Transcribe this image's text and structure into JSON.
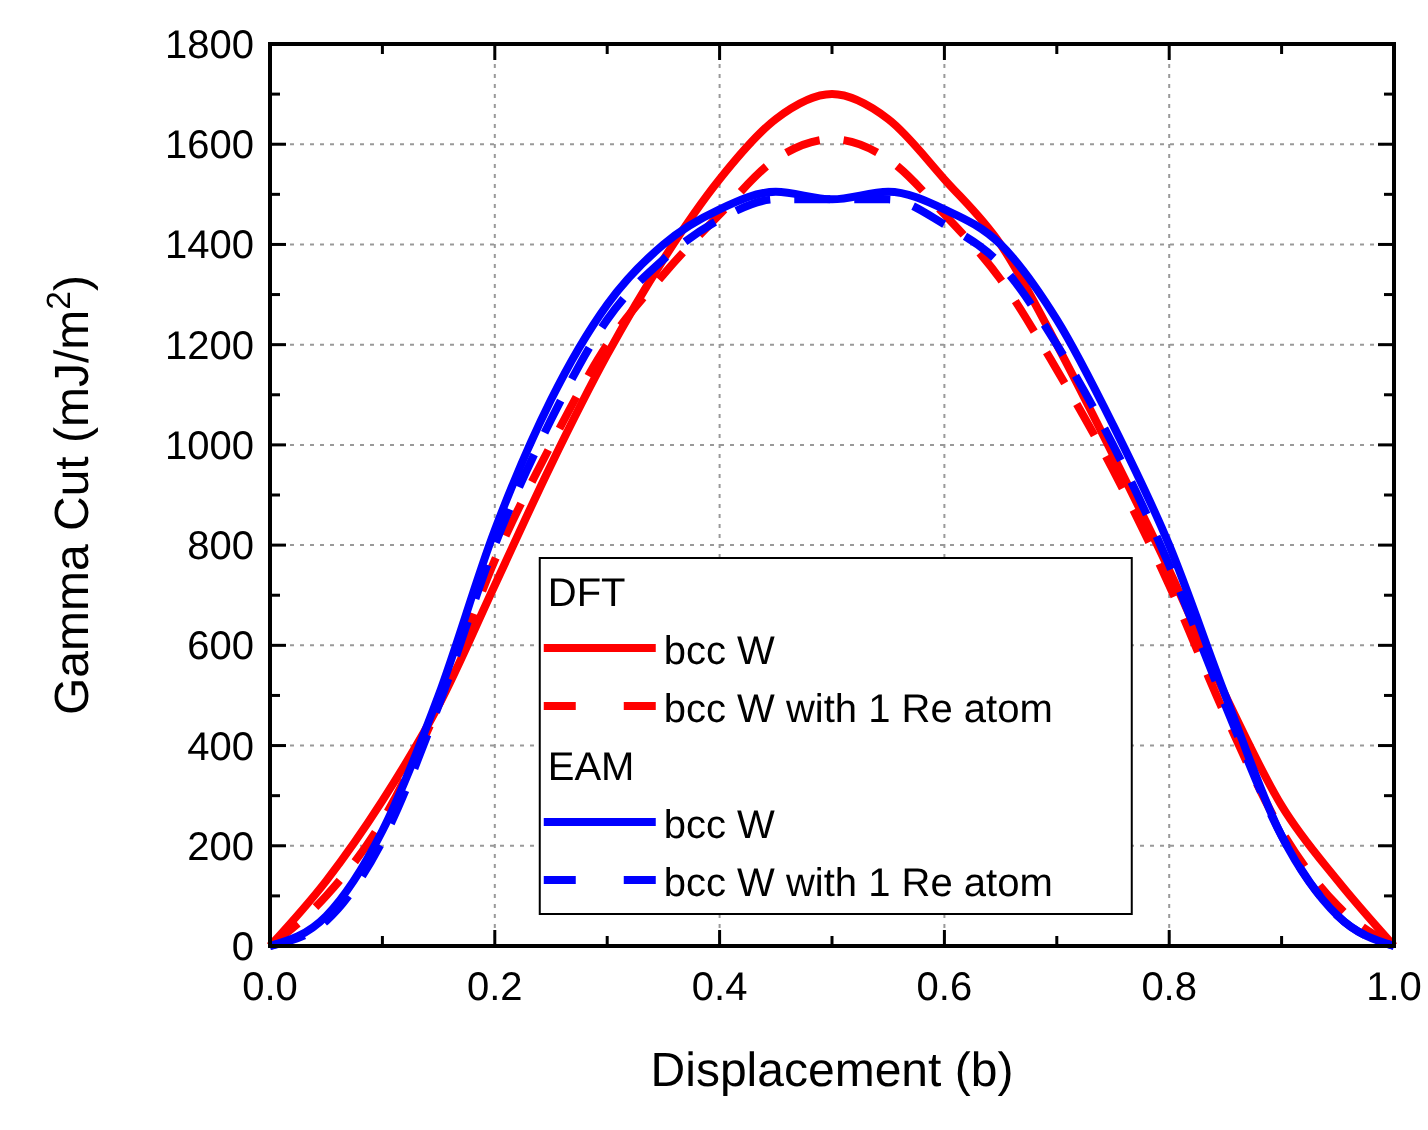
{
  "chart_data": {
    "type": "line",
    "xlabel": "Displacement (b)",
    "ylabel": "Gamma Cut (mJ/m$^{2}$)",
    "xlim": [
      0,
      1
    ],
    "ylim": [
      0,
      1800
    ],
    "xticks": [
      {
        "value": 0,
        "label": "0.0"
      },
      {
        "value": 0.1,
        "label": null
      },
      {
        "value": 0.2,
        "label": "0.2"
      },
      {
        "value": 0.3,
        "label": null
      },
      {
        "value": 0.4,
        "label": "0.4"
      },
      {
        "value": 0.5,
        "label": null
      },
      {
        "value": 0.6,
        "label": "0.6"
      },
      {
        "value": 0.7,
        "label": null
      },
      {
        "value": 0.8,
        "label": "0.8"
      },
      {
        "value": 0.9,
        "label": null
      },
      {
        "value": 1,
        "label": "1.0"
      }
    ],
    "yticks": [
      0,
      {
        "value": 100,
        "label": null
      },
      200,
      {
        "value": 300,
        "label": null
      },
      400,
      {
        "value": 500,
        "label": null
      },
      600,
      {
        "value": 700,
        "label": null
      },
      800,
      {
        "value": 900,
        "label": null
      },
      1000,
      {
        "value": 1100,
        "label": null
      },
      1200,
      {
        "value": 1300,
        "label": null
      },
      1400,
      {
        "value": 1500,
        "label": null
      },
      1600,
      {
        "value": 1700,
        "label": null
      },
      1800
    ],
    "grid": true,
    "legend": "bottom",
    "annotations": [
      "DFT",
      "EAM"
    ],
    "x": [
      0,
      0.05,
      0.1,
      0.15,
      0.2,
      0.25,
      0.3,
      0.35,
      0.4,
      0.45,
      0.5,
      0.55,
      0.6,
      0.65,
      0.7,
      0.75,
      0.8,
      0.85,
      0.9,
      0.95,
      1
    ],
    "series": [
      {
        "name": "bcc W",
        "color": "#ff0000",
        "line_style": "solid",
        "values": [
          0,
          130,
          290,
          480,
          720,
          960,
          1180,
          1370,
          1530,
          1650,
          1700,
          1650,
          1530,
          1400,
          1200,
          980,
          750,
          500,
          280,
          130,
          0
        ]
      },
      {
        "name": "bcc W with 1 Re atom",
        "color": "#ff0000",
        "line_style": "dashed",
        "values": [
          0,
          100,
          250,
          480,
          770,
          1000,
          1200,
          1340,
          1460,
          1570,
          1610,
          1570,
          1460,
          1330,
          1150,
          950,
          720,
          460,
          230,
          80,
          0
        ]
      },
      {
        "name": "bcc W",
        "color": "#0000ff",
        "line_style": "solid",
        "values": [
          0,
          60,
          230,
          500,
          830,
          1090,
          1280,
          1400,
          1470,
          1505,
          1490,
          1505,
          1470,
          1400,
          1250,
          1040,
          800,
          500,
          220,
          60,
          0
        ]
      },
      {
        "name": "bcc W with 1 Re atom",
        "color": "#0000ff",
        "line_style": "dashed",
        "values": [
          0,
          50,
          210,
          480,
          800,
          1050,
          1250,
          1370,
          1450,
          1490,
          1490,
          1490,
          1440,
          1360,
          1200,
          1000,
          760,
          480,
          220,
          60,
          0
        ]
      }
    ]
  }
}
